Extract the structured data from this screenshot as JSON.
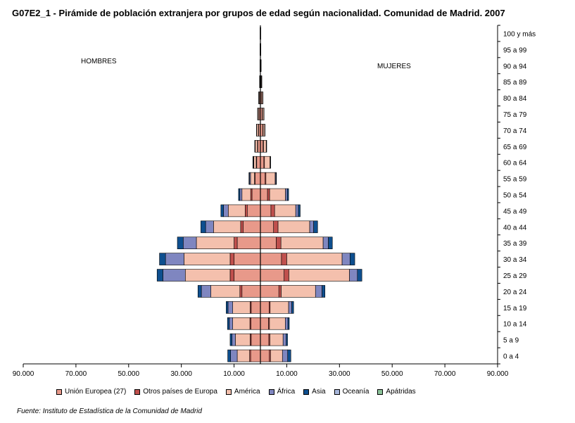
{
  "chart_data": {
    "type": "bar",
    "orientation": "horizontal-pyramid",
    "title": "G07E2_1 - Pirámide de población extranjera por grupos de edad según nacionalidad. Comunidad de Madrid. 2007",
    "left_label": "HOMBRES",
    "right_label": "MUJERES",
    "source": "Fuente: Instituto de Estadística de la Comunidad de Madrid",
    "categories": [
      "100 y más",
      "95 a 99",
      "90 a 94",
      "85 a 89",
      "80 a 84",
      "75 a 79",
      "70 a 74",
      "65 a 69",
      "60 a 64",
      "55 a 59",
      "50 a 54",
      "45 a 49",
      "40 a 44",
      "35 a 39",
      "30 a 34",
      "25 a 29",
      "20 a 24",
      "15 a 19",
      "10 a 14",
      "5 a 9",
      "0 a 4"
    ],
    "x_ticks": [
      "90.000",
      "70.000",
      "50.000",
      "30.000",
      "10.000",
      "10.000",
      "30.000",
      "50.000",
      "70.000",
      "90.000"
    ],
    "xlim": [
      -90000,
      90000
    ],
    "legend_placement": "bottom",
    "grid": false,
    "series": [
      {
        "name": "Unión Europea (27)",
        "color": "#e8998a",
        "hombres": [
          50,
          50,
          80,
          150,
          300,
          500,
          700,
          1000,
          1400,
          2000,
          3200,
          5000,
          6500,
          8800,
          10000,
          10000,
          7000,
          3500,
          3600,
          3500,
          3700
        ],
        "mujeres": [
          60,
          80,
          120,
          250,
          450,
          700,
          900,
          1000,
          1300,
          1800,
          2700,
          4000,
          5000,
          6000,
          8000,
          9000,
          7000,
          3300,
          3100,
          3200,
          3400
        ]
      },
      {
        "name": "Otros países de Europa",
        "color": "#c0504d",
        "hombres": [
          10,
          10,
          20,
          30,
          50,
          80,
          100,
          150,
          200,
          250,
          500,
          800,
          1000,
          1200,
          1500,
          1500,
          800,
          400,
          400,
          400,
          400
        ],
        "mujeres": [
          10,
          20,
          20,
          40,
          60,
          100,
          150,
          200,
          250,
          300,
          800,
          1400,
          1700,
          1800,
          2000,
          1800,
          900,
          400,
          350,
          400,
          450
        ]
      },
      {
        "name": "América",
        "color": "#f4c0ad",
        "hombres": [
          20,
          30,
          60,
          100,
          250,
          400,
          600,
          800,
          900,
          1500,
          3300,
          6400,
          10300,
          14300,
          17500,
          17000,
          11000,
          6600,
          6500,
          5600,
          4700
        ],
        "mujeres": [
          30,
          50,
          100,
          200,
          400,
          500,
          600,
          1000,
          2100,
          3500,
          6000,
          8000,
          12000,
          16000,
          21000,
          23000,
          13000,
          7000,
          6000,
          5000,
          4500
        ]
      },
      {
        "name": "África",
        "color": "#7f86c0",
        "hombres": [
          5,
          5,
          10,
          20,
          30,
          50,
          50,
          100,
          200,
          400,
          800,
          1800,
          3000,
          5000,
          7000,
          8500,
          3600,
          1800,
          1300,
          1300,
          2500
        ],
        "mujeres": [
          5,
          5,
          10,
          20,
          30,
          50,
          50,
          100,
          150,
          300,
          700,
          1000,
          1500,
          2000,
          3000,
          3000,
          2500,
          1200,
          1000,
          1200,
          2000
        ]
      },
      {
        "name": "Asia",
        "color": "#0e4f8f",
        "hombres": [
          5,
          5,
          10,
          10,
          20,
          30,
          50,
          100,
          150,
          200,
          500,
          1000,
          1800,
          2200,
          2300,
          2200,
          1300,
          700,
          700,
          700,
          1100
        ],
        "mujeres": [
          5,
          5,
          10,
          10,
          20,
          30,
          50,
          100,
          100,
          200,
          500,
          700,
          1500,
          1500,
          1800,
          1700,
          1100,
          700,
          500,
          500,
          1200
        ]
      },
      {
        "name": "Oceanía",
        "color": "#a9b8dc",
        "hombres": [
          0,
          0,
          0,
          0,
          0,
          0,
          0,
          0,
          0,
          0,
          0,
          0,
          0,
          0,
          0,
          0,
          0,
          0,
          0,
          0,
          0
        ],
        "mujeres": [
          0,
          0,
          0,
          0,
          0,
          0,
          0,
          0,
          0,
          0,
          0,
          0,
          0,
          0,
          0,
          0,
          0,
          0,
          0,
          0,
          0
        ]
      },
      {
        "name": "Apátridas",
        "color": "#8cc49a",
        "hombres": [
          0,
          0,
          0,
          0,
          0,
          0,
          0,
          0,
          0,
          0,
          0,
          0,
          0,
          0,
          0,
          0,
          0,
          0,
          0,
          0,
          0
        ],
        "mujeres": [
          0,
          0,
          0,
          0,
          0,
          0,
          0,
          0,
          0,
          0,
          0,
          0,
          0,
          0,
          0,
          0,
          0,
          0,
          0,
          0,
          0
        ]
      }
    ]
  }
}
